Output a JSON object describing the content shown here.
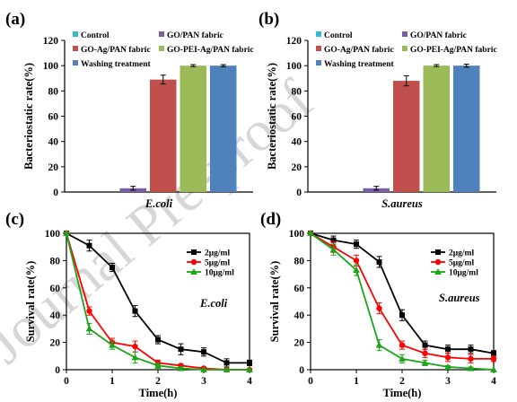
{
  "watermark": "Journal Pre-proof",
  "chart_data": [
    {
      "panel": "(a)",
      "type": "bar",
      "ylabel": "Bacteriostatic rate(%)",
      "xlabel": "E.coli",
      "ylim": [
        0,
        120
      ],
      "yticks": [
        0,
        20,
        40,
        60,
        80,
        100,
        120
      ],
      "legend_columns": [
        [
          "Control",
          "GO-Ag/PAN fabric",
          "Washing treatment"
        ],
        [
          "GO/PAN fabric",
          "GO-PEI-Ag/PAN fabric"
        ]
      ],
      "series": [
        {
          "name": "Control",
          "value": 0,
          "error": 0,
          "color": "#31b9d6"
        },
        {
          "name": "GO/PAN fabric",
          "value": 3,
          "error": 1.5,
          "color": "#7a5fa5"
        },
        {
          "name": "GO-Ag/PAN fabric",
          "value": 89,
          "error": 3.5,
          "color": "#c0504d"
        },
        {
          "name": "GO-PEI-Ag/PAN fabric",
          "value": 100,
          "error": 0.8,
          "color": "#9bbb59"
        },
        {
          "name": "Washing treatment",
          "value": 100,
          "error": 0.8,
          "color": "#4f81bd"
        }
      ]
    },
    {
      "panel": "(b)",
      "type": "bar",
      "ylabel": "Bacteriostatic rate(%)",
      "xlabel": "S.aureus",
      "ylim": [
        0,
        120
      ],
      "yticks": [
        0,
        20,
        40,
        60,
        80,
        100,
        120
      ],
      "legend_columns": [
        [
          "Control",
          "GO-Ag/PAN fabric",
          "Washing treatment"
        ],
        [
          "GO/PAN fabric",
          "GO-PEI-Ag/PAN fabric"
        ]
      ],
      "series": [
        {
          "name": "Control",
          "value": 0,
          "error": 0,
          "color": "#31b9d6"
        },
        {
          "name": "GO/PAN fabric",
          "value": 3,
          "error": 1.5,
          "color": "#7a5fa5"
        },
        {
          "name": "GO-Ag/PAN fabric",
          "value": 88,
          "error": 4,
          "color": "#c0504d"
        },
        {
          "name": "GO-PEI-Ag/PAN fabric",
          "value": 100,
          "error": 0.8,
          "color": "#9bbb59"
        },
        {
          "name": "Washing treatment",
          "value": 100,
          "error": 1.2,
          "color": "#4f81bd"
        }
      ]
    },
    {
      "panel": "(c)",
      "type": "line",
      "xlabel": "Time(h)",
      "ylabel": "Survival rate(%)",
      "annotation": "E.coli",
      "xlim": [
        0,
        4
      ],
      "ylim": [
        0,
        100
      ],
      "xticks": [
        0,
        1,
        2,
        3,
        4
      ],
      "yticks": [
        0,
        20,
        40,
        60,
        80,
        100
      ],
      "x": [
        0,
        0.5,
        1,
        1.5,
        2,
        2.5,
        3,
        3.5,
        4
      ],
      "series": [
        {
          "name": "2μg/ml",
          "color": "#000000",
          "marker": "square",
          "values": [
            100,
            91,
            75,
            43,
            22,
            15,
            13,
            5,
            5
          ],
          "errors": [
            1,
            4,
            3,
            4,
            3,
            4,
            3,
            3,
            2
          ]
        },
        {
          "name": "5μg/ml",
          "color": "#ff0000",
          "marker": "circle",
          "values": [
            100,
            43,
            20,
            17,
            5,
            3,
            1,
            0,
            0
          ],
          "errors": [
            1,
            3,
            3,
            4,
            2,
            1,
            1,
            0,
            0
          ]
        },
        {
          "name": "10μg/ml",
          "color": "#1aa51a",
          "marker": "triangle",
          "values": [
            100,
            30,
            18,
            9,
            3,
            1,
            0,
            0,
            0
          ],
          "errors": [
            1,
            4,
            3,
            4,
            2,
            1,
            0,
            0,
            0
          ]
        }
      ]
    },
    {
      "panel": "(d)",
      "type": "line",
      "xlabel": "Time(h)",
      "ylabel": "Survival rate(%)",
      "annotation": "S.aureus",
      "xlim": [
        0,
        4
      ],
      "ylim": [
        0,
        100
      ],
      "xticks": [
        0,
        1,
        2,
        3,
        4
      ],
      "yticks": [
        0,
        20,
        40,
        60,
        80,
        100
      ],
      "x": [
        0,
        0.5,
        1,
        1.5,
        2,
        2.5,
        3,
        3.5,
        4
      ],
      "series": [
        {
          "name": "2μg/ml",
          "color": "#000000",
          "marker": "square",
          "values": [
            100,
            95,
            92,
            79,
            40,
            18,
            15,
            15,
            12
          ],
          "errors": [
            1,
            3,
            3,
            4,
            4,
            3,
            3,
            3,
            2
          ]
        },
        {
          "name": "5μg/ml",
          "color": "#ff0000",
          "marker": "circle",
          "values": [
            100,
            90,
            80,
            45,
            18,
            12,
            9,
            8,
            8
          ],
          "errors": [
            1,
            4,
            4,
            4,
            3,
            3,
            3,
            3,
            2
          ]
        },
        {
          "name": "10μg/ml",
          "color": "#1aa51a",
          "marker": "triangle",
          "values": [
            100,
            88,
            73,
            18,
            8,
            5,
            2,
            1,
            0
          ],
          "errors": [
            1,
            4,
            4,
            4,
            3,
            2,
            1,
            1,
            0
          ]
        }
      ]
    }
  ]
}
